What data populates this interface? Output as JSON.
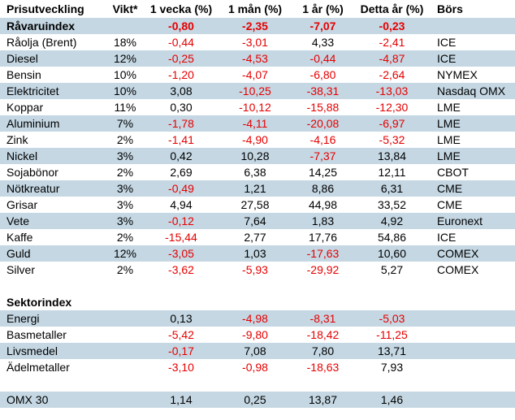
{
  "colors": {
    "row_shade": "#c4d7e3",
    "negative_value": "#e60000",
    "text": "#000000",
    "background": "#ffffff"
  },
  "table": {
    "columns": {
      "name": "Prisutveckling",
      "vikt": "Vikt*",
      "w1": "1 vecka (%)",
      "m1": "1 mån (%)",
      "y1": "1 år (%)",
      "ytd": "Detta år (%)",
      "bors": "Börs"
    },
    "rows": [
      {
        "name": "Råvaruindex",
        "vikt": "",
        "values": [
          "-0,80",
          "-2,35",
          "-7,07",
          "-0,23"
        ],
        "bors": "",
        "bold": true,
        "shaded": true
      },
      {
        "name": "Råolja (Brent)",
        "vikt": "18%",
        "values": [
          "-0,44",
          "-3,01",
          "4,33",
          "-2,41"
        ],
        "bors": "ICE",
        "bold": false,
        "shaded": false
      },
      {
        "name": "Diesel",
        "vikt": "12%",
        "values": [
          "-0,25",
          "-4,53",
          "-0,44",
          "-4,87"
        ],
        "bors": "ICE",
        "bold": false,
        "shaded": true
      },
      {
        "name": "Bensin",
        "vikt": "10%",
        "values": [
          "-1,20",
          "-4,07",
          "-6,80",
          "-2,64"
        ],
        "bors": "NYMEX",
        "bold": false,
        "shaded": false
      },
      {
        "name": "Elektricitet",
        "vikt": "10%",
        "values": [
          "3,08",
          "-10,25",
          "-38,31",
          "-13,03"
        ],
        "bors": "Nasdaq OMX",
        "bold": false,
        "shaded": true
      },
      {
        "name": "Koppar",
        "vikt": "11%",
        "values": [
          "0,30",
          "-10,12",
          "-15,88",
          "-12,30"
        ],
        "bors": "LME",
        "bold": false,
        "shaded": false
      },
      {
        "name": "Aluminium",
        "vikt": "7%",
        "values": [
          "-1,78",
          "-4,11",
          "-20,08",
          "-6,97"
        ],
        "bors": "LME",
        "bold": false,
        "shaded": true
      },
      {
        "name": "Zink",
        "vikt": "2%",
        "values": [
          "-1,41",
          "-4,90",
          "-4,16",
          "-5,32"
        ],
        "bors": "LME",
        "bold": false,
        "shaded": false
      },
      {
        "name": "Nickel",
        "vikt": "3%",
        "values": [
          "0,42",
          "10,28",
          "-7,37",
          "13,84"
        ],
        "bors": "LME",
        "bold": false,
        "shaded": true
      },
      {
        "name": "Sojabönor",
        "vikt": "2%",
        "values": [
          "2,69",
          "6,38",
          "14,25",
          "12,11"
        ],
        "bors": "CBOT",
        "bold": false,
        "shaded": false
      },
      {
        "name": "Nötkreatur",
        "vikt": "3%",
        "values": [
          "-0,49",
          "1,21",
          "8,86",
          "6,31"
        ],
        "bors": "CME",
        "bold": false,
        "shaded": true
      },
      {
        "name": "Grisar",
        "vikt": "3%",
        "values": [
          "4,94",
          "27,58",
          "44,98",
          "33,52"
        ],
        "bors": "CME",
        "bold": false,
        "shaded": false
      },
      {
        "name": "Vete",
        "vikt": "3%",
        "values": [
          "-0,12",
          "7,64",
          "1,83",
          "4,92"
        ],
        "bors": "Euronext",
        "bold": false,
        "shaded": true
      },
      {
        "name": "Kaffe",
        "vikt": "2%",
        "values": [
          "-15,44",
          "2,77",
          "17,76",
          "54,86"
        ],
        "bors": "ICE",
        "bold": false,
        "shaded": false
      },
      {
        "name": "Guld",
        "vikt": "12%",
        "values": [
          "-3,05",
          "1,03",
          "-17,63",
          "10,60"
        ],
        "bors": "COMEX",
        "bold": false,
        "shaded": true
      },
      {
        "name": "Silver",
        "vikt": "2%",
        "values": [
          "-3,62",
          "-5,93",
          "-29,92",
          "5,27"
        ],
        "bors": "COMEX",
        "bold": false,
        "shaded": false
      },
      {
        "blank": true
      },
      {
        "name": "Sektorindex",
        "vikt": "",
        "values": [
          "",
          "",
          "",
          ""
        ],
        "bors": "",
        "bold": true,
        "shaded": false
      },
      {
        "name": "Energi",
        "vikt": "",
        "values": [
          "0,13",
          "-4,98",
          "-8,31",
          "-5,03"
        ],
        "bors": "",
        "bold": false,
        "shaded": true
      },
      {
        "name": "Basmetaller",
        "vikt": "",
        "values": [
          "-5,42",
          "-9,80",
          "-18,42",
          "-11,25"
        ],
        "bors": "",
        "bold": false,
        "shaded": false
      },
      {
        "name": "Livsmedel",
        "vikt": "",
        "values": [
          "-0,17",
          "7,08",
          "7,80",
          "13,71"
        ],
        "bors": "",
        "bold": false,
        "shaded": true
      },
      {
        "name": "Ädelmetaller",
        "vikt": "",
        "values": [
          "-3,10",
          "-0,98",
          "-18,63",
          "7,93"
        ],
        "bors": "",
        "bold": false,
        "shaded": false
      },
      {
        "blank": true
      },
      {
        "name": "OMX 30",
        "vikt": "",
        "values": [
          "1,14",
          "0,25",
          "13,87",
          "1,46"
        ],
        "bors": "",
        "bold": false,
        "shaded": true
      }
    ]
  }
}
